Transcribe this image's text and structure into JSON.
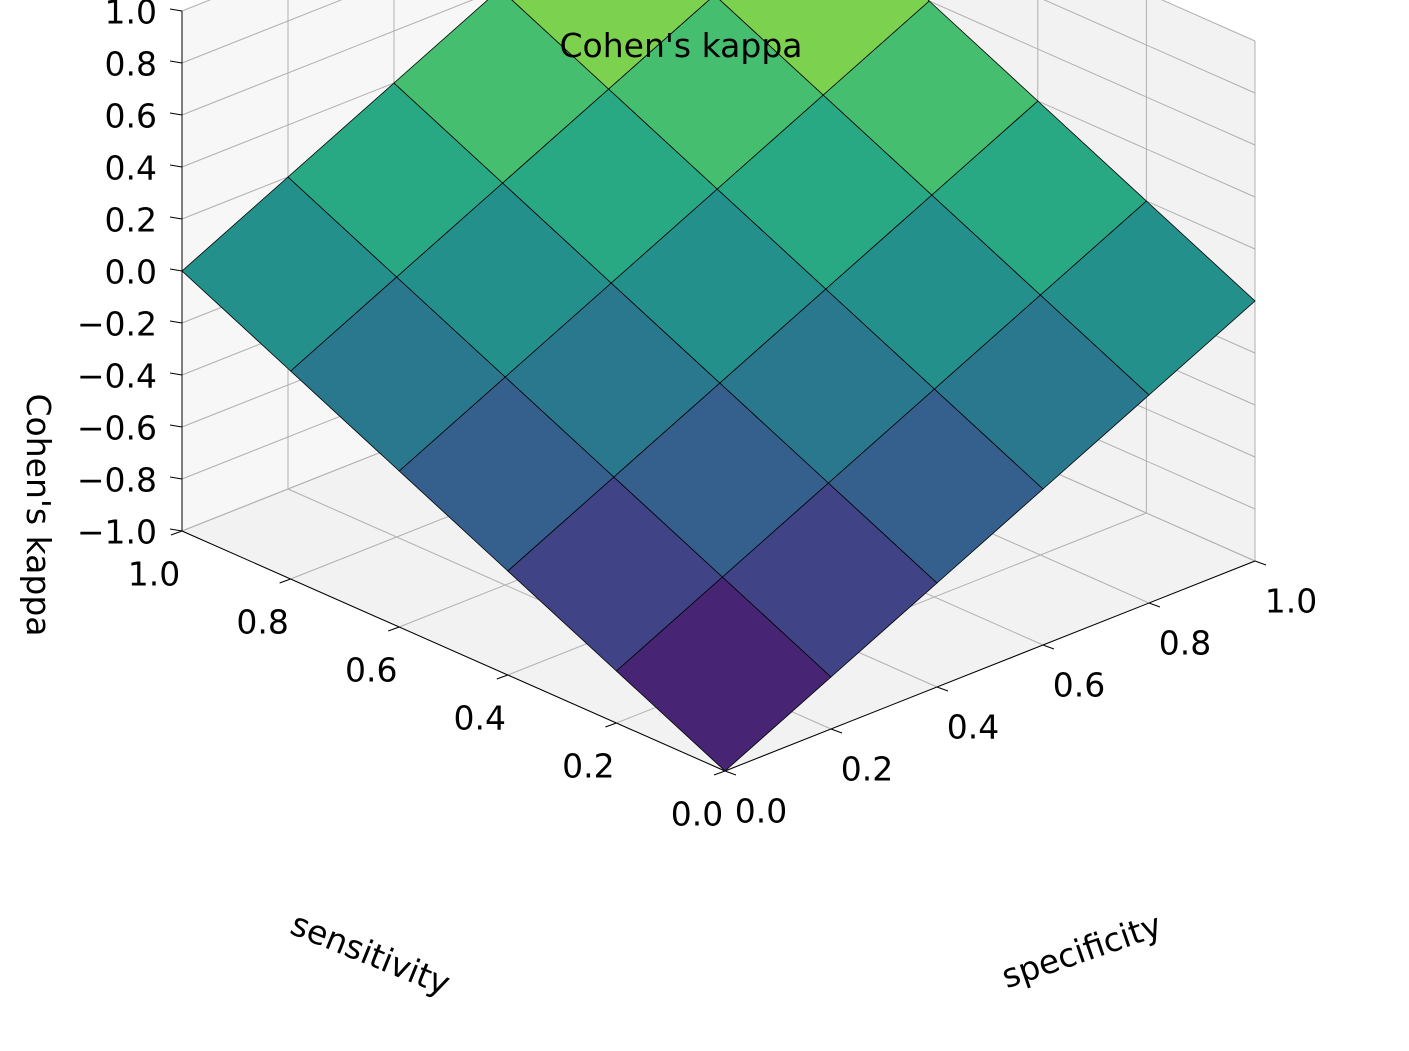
{
  "chart_data": {
    "type": "surface",
    "title": "Cohen's kappa",
    "xlabel": "sensitivity",
    "ylabel": "specificity",
    "zlabel": "Cohen's kappa",
    "x_ticks": [
      "0.0",
      "0.2",
      "0.4",
      "0.6",
      "0.8",
      "1.0"
    ],
    "y_ticks": [
      "0.0",
      "0.2",
      "0.4",
      "0.6",
      "0.8",
      "1.0"
    ],
    "z_ticks": [
      "−1.0",
      "−0.8",
      "−0.6",
      "−0.4",
      "−0.2",
      "0.0",
      "0.2",
      "0.4",
      "0.6",
      "0.8",
      "1.0"
    ],
    "xlim": [
      0,
      1
    ],
    "ylim": [
      0,
      1
    ],
    "zlim": [
      -1,
      1
    ],
    "grid": true,
    "colormap": "viridis",
    "x": [
      0.0,
      0.2,
      0.4,
      0.6,
      0.8,
      1.0
    ],
    "y": [
      0.0,
      0.2,
      0.4,
      0.6,
      0.8,
      1.0
    ],
    "z": [
      [
        -1.0,
        -0.8,
        -0.6,
        -0.4,
        -0.2,
        0.0
      ],
      [
        -0.8,
        -0.6,
        -0.4,
        -0.2,
        0.0,
        0.2
      ],
      [
        -0.6,
        -0.4,
        -0.2,
        0.0,
        0.2,
        0.4
      ],
      [
        -0.4,
        -0.2,
        0.0,
        0.2,
        0.4,
        0.6
      ],
      [
        -0.2,
        0.0,
        0.2,
        0.4,
        0.6,
        0.8
      ],
      [
        0.0,
        0.2,
        0.4,
        0.6,
        0.8,
        1.0
      ]
    ]
  }
}
